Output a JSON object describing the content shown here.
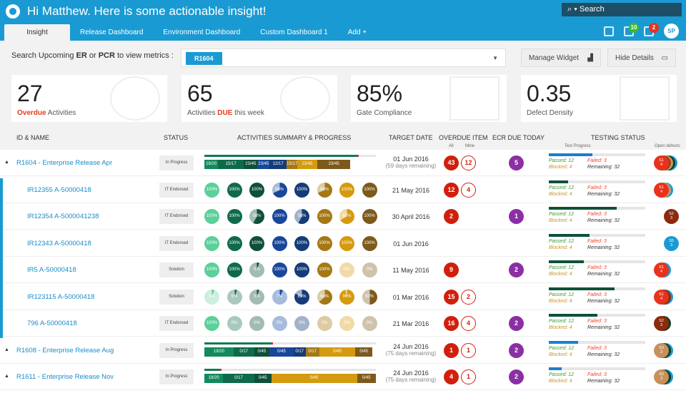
{
  "header": {
    "greeting": "Hi Matthew. Here is some actionable insight!",
    "search_placeholder": "Search",
    "search_icon": "search-icon",
    "tabs": [
      {
        "label": "Insight",
        "active": true
      },
      {
        "label": "Release Dashboard"
      },
      {
        "label": "Environment Dashboard"
      },
      {
        "label": "Custom Dashboard 1"
      },
      {
        "label": "Add +"
      }
    ],
    "notifications": {
      "messages": "10",
      "alerts": "2"
    },
    "avatar": "SP"
  },
  "filter": {
    "label_pre": "Search Upcoming ",
    "er": "ER",
    "or": " or ",
    "pcr": "PCR",
    "label_post": " to view metrics :",
    "selected": "R1604"
  },
  "buttons": {
    "manage": "Manage Widget",
    "hide": "Hide Details"
  },
  "cards": [
    {
      "value": "27",
      "label_hl": "Overdue",
      "label": " Activities"
    },
    {
      "value": "65",
      "label_pre": "Activities ",
      "label_hl": "DUE",
      "label": " this week"
    },
    {
      "value": "85%",
      "label": "Gate Compliance"
    },
    {
      "value": "0.35",
      "label": "Defect Density"
    }
  ],
  "columns": {
    "id": "ID & NAME",
    "status": "STATUS",
    "activities": "ACTIVITIES SUMMARY & PROGRESS",
    "target": "TARGET DATE",
    "overdue": "OVERDUE ITEM",
    "all": "All",
    "mine": "Mine",
    "ecr": "ECR DUE  TODAY",
    "testing": "TESTING STATUS",
    "test_progress": "Test Progress",
    "open_defects": "Open defects"
  },
  "colors": {
    "accent": "#1a9ad3",
    "overdue": "#d11f0b",
    "ecr": "#8b2fa4"
  },
  "rows": [
    {
      "type": "release",
      "name": "R1604 - Enterprise Release Apr",
      "status": "In Progress",
      "progress_pct": 45,
      "segments": [
        [
          "19/20",
          "#128a5c",
          8
        ],
        [
          "15/17",
          "#0f6a4a",
          15
        ],
        [
          "23/45",
          "#0e5038",
          8
        ],
        [
          "23/45",
          "#18479a",
          7
        ],
        [
          "12/17",
          "#153c78",
          10
        ],
        [
          "15/17",
          "#a57815",
          6
        ],
        [
          "23/45",
          "#d59a0e",
          12
        ],
        [
          "23/45",
          "#7d5a1c",
          19
        ]
      ],
      "date": "01 Jun 2016",
      "remaining": "(59 days remaining)",
      "all": "43",
      "mine": "12",
      "ecr": "5",
      "test_pct": 45,
      "test_color": "#1a7fd0",
      "passed": "Passed: 12",
      "failed": "Failed: 3",
      "blocked": "Blocked: 4",
      "remain": "Remaining: 32",
      "defects": [
        [
          "S1\n4",
          "#e8321c"
        ],
        [
          "",
          "#a0441a"
        ],
        [
          "",
          "#c89a60"
        ],
        [
          "",
          "#0d3f2a"
        ],
        [
          "",
          "#1a9ad3"
        ]
      ]
    },
    {
      "type": "item",
      "name": "IR12355 A-50000418",
      "status": "IT Endorsed",
      "pies": [
        "100%",
        "100%",
        "100%",
        "68%",
        "100%",
        "69%",
        "100%",
        "100%"
      ],
      "date": "21 May 2016",
      "all": "12",
      "mine": "4",
      "test_pct": 20,
      "test_color": "#0e5038",
      "passed": "Passed: 12",
      "failed": "Failed: 3",
      "blocked": "Blocked: 4",
      "remain": "Remaining: 32",
      "defects": [
        [
          "S1\n4",
          "#e8321c"
        ],
        [
          "S2",
          "#c89a60"
        ],
        [
          "S3",
          "#1a9ad3"
        ]
      ]
    },
    {
      "type": "item",
      "name": "IR12354 A-5000041238",
      "status": "IT Endorsed",
      "pies": [
        "100%",
        "100%",
        "58%",
        "100%",
        "58%",
        "100%",
        "67%",
        "100%"
      ],
      "date": "30 April 2016",
      "all": "2",
      "ecr": "1",
      "test_pct": 70,
      "test_color": "#0e5038",
      "passed": "Passed: 12",
      "failed": "Failed: 3",
      "blocked": "Blocked: 4",
      "remain": "Remaining: 32",
      "defects": [
        [
          "S2\n3",
          "#8b2a0c"
        ]
      ]
    },
    {
      "type": "item",
      "name": "IR12343 A-50000418",
      "status": "IT Endorsed",
      "pies": [
        "100%",
        "100%",
        "100%",
        "100%",
        "100%",
        "100%",
        "100%",
        "100%"
      ],
      "date": "01 Jun 2016",
      "test_pct": 42,
      "test_color": "#0e5038",
      "passed": "Passed: 12",
      "failed": "Failed: 3",
      "blocked": "Blocked: 4",
      "remain": "Remaining: 32",
      "defects": [
        [
          "S5\n3",
          "#1a9ad3"
        ]
      ]
    },
    {
      "type": "item",
      "name": "IR5 A-50000418",
      "status": "Solution",
      "pies": [
        "100%",
        "100%",
        "5%",
        "100%",
        "100%",
        "100%",
        "0%",
        "0%"
      ],
      "date": "11 May 2016",
      "all": "9",
      "ecr": "2",
      "test_pct": 36,
      "test_color": "#0e5038",
      "passed": "Passed: 12",
      "failed": "Failed: 3",
      "blocked": "Blocked: 4",
      "remain": "Remaining: 32",
      "defects": [
        [
          "S1\n4",
          "#e8321c"
        ],
        [
          "S5\n3",
          "#1a9ad3"
        ]
      ]
    },
    {
      "type": "item",
      "name": "IR123115 A-50000418",
      "status": "Solution",
      "pies": [
        "5%",
        "5%",
        "5%",
        "7%",
        "83%",
        "64%",
        "96%",
        "50%"
      ],
      "date": "01 Mar 2016",
      "all": "15",
      "mine": "2",
      "test_pct": 68,
      "test_color": "#0e5038",
      "passed": "Passed: 12",
      "failed": "Failed: 3",
      "blocked": "Blocked: 4",
      "remain": "Remaining: 32",
      "defects": [
        [
          "S1\n4",
          "#e8321c"
        ],
        [
          "",
          "#8b2a0c"
        ],
        [
          "S5",
          "#1a9ad3"
        ]
      ]
    },
    {
      "type": "item",
      "name": "796 A-50000418",
      "status": "IT Endorsed",
      "pies": [
        "100%",
        "0%",
        "0%",
        "0%",
        "0%",
        "0%",
        "0%",
        "0%"
      ],
      "date": "21 Mar 2016",
      "all": "16",
      "mine": "4",
      "ecr": "2",
      "test_pct": 50,
      "test_color": "#0e5038",
      "passed": "Passed: 12",
      "failed": "Failed: 3",
      "blocked": "Blocked: 4",
      "remain": "Remaining: 32",
      "defects": [
        [
          "S2\n3",
          "#8b2a0c"
        ],
        [
          "",
          "#0d3f2a"
        ]
      ]
    },
    {
      "type": "release",
      "name": "R1608 - Enterprise Release Aug",
      "status": "In Progress",
      "progress_pct": 20,
      "segments": [
        [
          "19/20",
          "#128a5c",
          17
        ],
        [
          "0/17",
          "#0f6a4a",
          12
        ],
        [
          "0/45",
          "#0e5038",
          9
        ],
        [
          "0/45",
          "#18479a",
          14
        ],
        [
          "0/17",
          "#153c78",
          7
        ],
        [
          "0/17",
          "#a57815",
          8
        ],
        [
          "0/45",
          "#d59a0e",
          21
        ],
        [
          "0/45",
          "#7d5a1c",
          10
        ]
      ],
      "date": "24 Jun 2016",
      "remaining": "(75 days remaining)",
      "all": "1",
      "mine": "1",
      "ecr": "2",
      "test_pct": 30,
      "test_color": "#1a7fd0",
      "passed": "Passed: 12",
      "failed": "Failed: 3",
      "blocked": "Blocked: 4",
      "remain": "Remaining: 32",
      "defects": [
        [
          "S3\n3",
          "#c8905a"
        ],
        [
          "",
          "#0d3f2a"
        ],
        [
          "",
          "#1a9ad3"
        ]
      ]
    },
    {
      "type": "release",
      "name": "R1611 - Enterprise Release Nov",
      "status": "In Progress",
      "progress_pct": 5,
      "segments": [
        [
          "19/20",
          "#128a5c",
          11
        ],
        [
          "0/17",
          "#0f6a4a",
          18
        ],
        [
          "0/45",
          "#0e5038",
          10
        ],
        [
          "0/45",
          "#d59a0e",
          50
        ],
        [
          "0/45",
          "#7d5a1c",
          11
        ]
      ],
      "date": "24 Jun 2016",
      "remaining": "(75 days remaining)",
      "all": "4",
      "mine": "1",
      "ecr": "2",
      "test_pct": 13,
      "test_color": "#1a7fd0",
      "passed": "Passed: 12",
      "failed": "Failed: 3",
      "blocked": "Blocked: 4",
      "remain": "Remaining: 32",
      "defects": [
        [
          "S3\n3",
          "#c8905a"
        ],
        [
          "",
          "#0d3f2a"
        ],
        [
          "",
          "#1a9ad3"
        ]
      ]
    }
  ]
}
